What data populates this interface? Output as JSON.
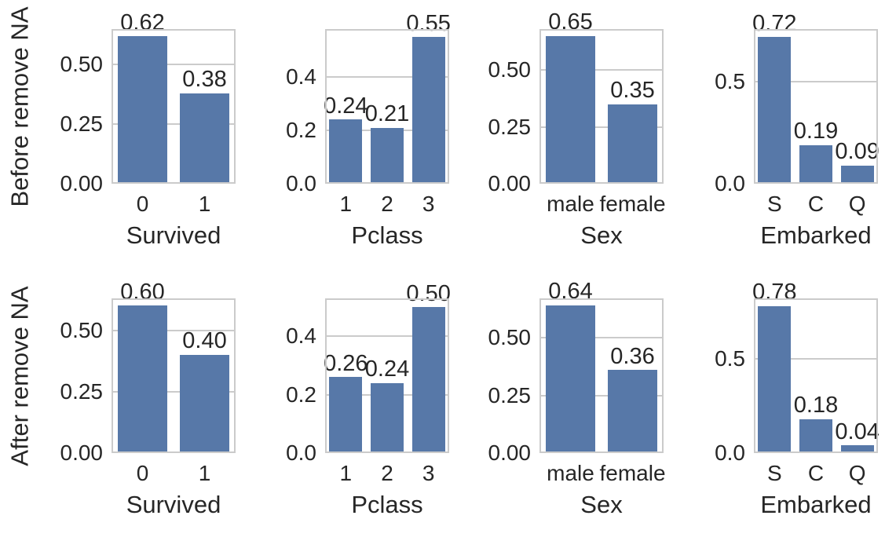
{
  "figure": {
    "row_labels": [
      "Before remove NA",
      "After remove NA"
    ],
    "colors": {
      "background": "#ffffff",
      "bar": "#5778a8",
      "grid": "#cbcbcb",
      "frame": "#cbcbcb",
      "text": "#262626"
    }
  },
  "chart_data": [
    {
      "type": "bar",
      "row": 0,
      "col": 0,
      "categories": [
        "0",
        "1"
      ],
      "values": [
        0.62,
        0.38
      ],
      "bar_labels": [
        "0.62",
        "0.38"
      ],
      "xlabel": "Survived",
      "ylabel": "Before remove NA",
      "yticks": [
        0,
        0.25,
        0.5
      ],
      "ytick_labels": [
        "0.00",
        "0.25",
        "0.50"
      ],
      "ylim": [
        0,
        0.65
      ],
      "grid": true,
      "legend": false
    },
    {
      "type": "bar",
      "row": 0,
      "col": 1,
      "categories": [
        "1",
        "2",
        "3"
      ],
      "values": [
        0.24,
        0.21,
        0.55
      ],
      "bar_labels": [
        "0.24",
        "0.21",
        "0.55"
      ],
      "xlabel": "Pclass",
      "ylabel": null,
      "yticks": [
        0,
        0.2,
        0.4
      ],
      "ytick_labels": [
        "0.0",
        "0.2",
        "0.4"
      ],
      "ylim": [
        0,
        0.58
      ],
      "grid": true,
      "legend": false
    },
    {
      "type": "bar",
      "row": 0,
      "col": 2,
      "categories": [
        "male",
        "female"
      ],
      "values": [
        0.65,
        0.35
      ],
      "bar_labels": [
        "0.65",
        "0.35"
      ],
      "xlabel": "Sex",
      "ylabel": null,
      "yticks": [
        0,
        0.25,
        0.5
      ],
      "ytick_labels": [
        "0.00",
        "0.25",
        "0.50"
      ],
      "ylim": [
        0,
        0.68
      ],
      "grid": true,
      "legend": false
    },
    {
      "type": "bar",
      "row": 0,
      "col": 3,
      "categories": [
        "S",
        "C",
        "Q"
      ],
      "values": [
        0.72,
        0.19,
        0.09
      ],
      "bar_labels": [
        "0.72",
        "0.19",
        "0.09"
      ],
      "xlabel": "Embarked",
      "ylabel": null,
      "yticks": [
        0,
        0.5
      ],
      "ytick_labels": [
        "0.0",
        "0.5"
      ],
      "ylim": [
        0,
        0.76
      ],
      "grid": true,
      "legend": false
    },
    {
      "type": "bar",
      "row": 1,
      "col": 0,
      "categories": [
        "0",
        "1"
      ],
      "values": [
        0.6,
        0.4
      ],
      "bar_labels": [
        "0.60",
        "0.40"
      ],
      "xlabel": "Survived",
      "ylabel": "After remove NA",
      "yticks": [
        0,
        0.25,
        0.5
      ],
      "ytick_labels": [
        "0.00",
        "0.25",
        "0.50"
      ],
      "ylim": [
        0,
        0.63
      ],
      "grid": true,
      "legend": false
    },
    {
      "type": "bar",
      "row": 1,
      "col": 1,
      "categories": [
        "1",
        "2",
        "3"
      ],
      "values": [
        0.26,
        0.24,
        0.5
      ],
      "bar_labels": [
        "0.26",
        "0.24",
        "0.50"
      ],
      "xlabel": "Pclass",
      "ylabel": null,
      "yticks": [
        0,
        0.2,
        0.4
      ],
      "ytick_labels": [
        "0.0",
        "0.2",
        "0.4"
      ],
      "ylim": [
        0,
        0.53
      ],
      "grid": true,
      "legend": false
    },
    {
      "type": "bar",
      "row": 1,
      "col": 2,
      "categories": [
        "male",
        "female"
      ],
      "values": [
        0.64,
        0.36
      ],
      "bar_labels": [
        "0.64",
        "0.36"
      ],
      "xlabel": "Sex",
      "ylabel": null,
      "yticks": [
        0,
        0.25,
        0.5
      ],
      "ytick_labels": [
        "0.00",
        "0.25",
        "0.50"
      ],
      "ylim": [
        0,
        0.67
      ],
      "grid": true,
      "legend": false
    },
    {
      "type": "bar",
      "row": 1,
      "col": 3,
      "categories": [
        "S",
        "C",
        "Q"
      ],
      "values": [
        0.78,
        0.18,
        0.04
      ],
      "bar_labels": [
        "0.78",
        "0.18",
        "0.04"
      ],
      "xlabel": "Embarked",
      "ylabel": null,
      "yticks": [
        0,
        0.5
      ],
      "ytick_labels": [
        "0.0",
        "0.5"
      ],
      "ylim": [
        0,
        0.82
      ],
      "grid": true,
      "legend": false
    }
  ]
}
